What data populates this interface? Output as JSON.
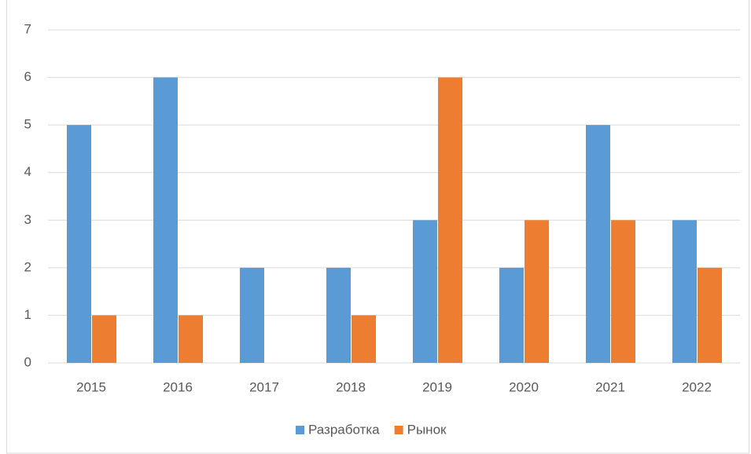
{
  "chart_data": {
    "type": "bar",
    "categories": [
      "2015",
      "2016",
      "2017",
      "2018",
      "2019",
      "2020",
      "2021",
      "2022"
    ],
    "series": [
      {
        "name": "Разработка",
        "color": "#5b9bd5",
        "values": [
          5,
          6,
          2,
          2,
          3,
          2,
          5,
          3
        ]
      },
      {
        "name": "Рынок",
        "color": "#ed7d31",
        "values": [
          1,
          1,
          0,
          1,
          6,
          3,
          3,
          2
        ]
      }
    ],
    "ylim": [
      0,
      7
    ],
    "yticks": [
      0,
      1,
      2,
      3,
      4,
      5,
      6,
      7
    ],
    "grid": true,
    "legend": "bottom"
  }
}
